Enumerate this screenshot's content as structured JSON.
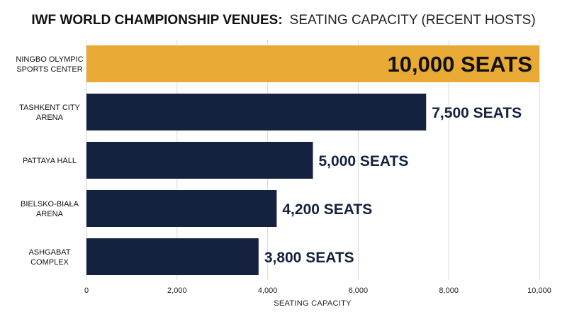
{
  "chart_data": {
    "type": "bar",
    "orientation": "horizontal",
    "title_bold": "IWF WORLD CHAMPIONSHIP VENUES:",
    "title_rest": "SEATING CAPACITY (RECENT HOSTS)",
    "categories": [
      [
        "NINGBO OLYMPIC",
        "SPORTS CENTER"
      ],
      [
        "TASHKENT CITY",
        "ARENA"
      ],
      [
        "PATTAYA HALL"
      ],
      [
        "BIELSKO-BIAŁA",
        "ARENA"
      ],
      [
        "ASHGABAT",
        "COMPLEX"
      ]
    ],
    "values": [
      10000,
      7500,
      5000,
      4200,
      3800
    ],
    "data_labels": [
      "10,000 SEATS",
      "7,500 SEATS",
      "5,000 SEATS",
      "4,200 SEATS",
      "3,800 SEATS"
    ],
    "xlabel": "SEATING CAPACITY",
    "ylabel": "",
    "xlim": [
      0,
      10000
    ],
    "xticks": [
      0,
      2000,
      4000,
      6000,
      8000,
      10000
    ],
    "xtick_labels": [
      "0",
      "2,000",
      "4,000",
      "6,000",
      "8,000",
      "10,000"
    ],
    "grid": "vertical",
    "colors": {
      "highlight": "#e8a935",
      "bar": "#14213f",
      "highlight_label": "#111111",
      "label": "#14213f"
    },
    "highlight_index": 0
  }
}
